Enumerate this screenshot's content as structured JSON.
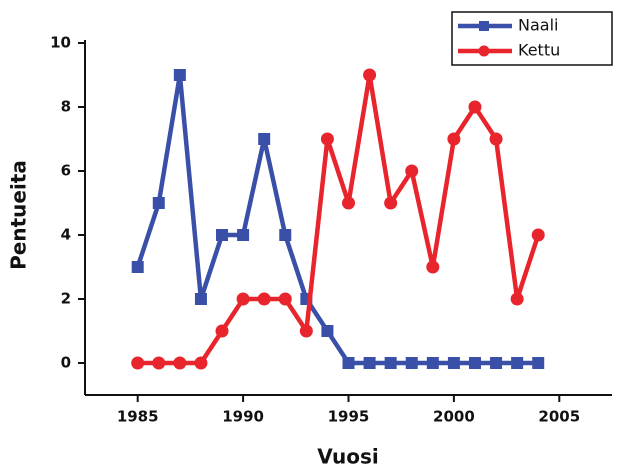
{
  "chart_data": {
    "type": "line",
    "x_label": "Vuosi",
    "y_label": "Pentueita",
    "x": [
      1985,
      1986,
      1987,
      1988,
      1989,
      1990,
      1991,
      1992,
      1993,
      1994,
      1995,
      1996,
      1997,
      1998,
      1999,
      2000,
      2001,
      2002,
      2003,
      2004
    ],
    "series": [
      {
        "name": "Naali",
        "color": "#3a50a8",
        "marker": "square",
        "values": [
          3,
          5,
          9,
          2,
          4,
          4,
          7,
          4,
          2,
          1,
          0,
          0,
          0,
          0,
          0,
          0,
          0,
          0,
          0,
          0
        ]
      },
      {
        "name": "Kettu",
        "color": "#e8242c",
        "marker": "circle",
        "values": [
          0,
          0,
          0,
          0,
          1,
          2,
          2,
          2,
          1,
          7,
          5,
          9,
          5,
          6,
          3,
          7,
          8,
          7,
          2,
          4
        ]
      }
    ],
    "xlim": [
      1982.5,
      2007.5
    ],
    "xticks": [
      1985,
      1990,
      1995,
      2000,
      2005
    ],
    "ylim": [
      -1,
      10
    ],
    "yticks": [
      0,
      2,
      4,
      6,
      8,
      10
    ],
    "legend": "top-right",
    "grid": false
  }
}
